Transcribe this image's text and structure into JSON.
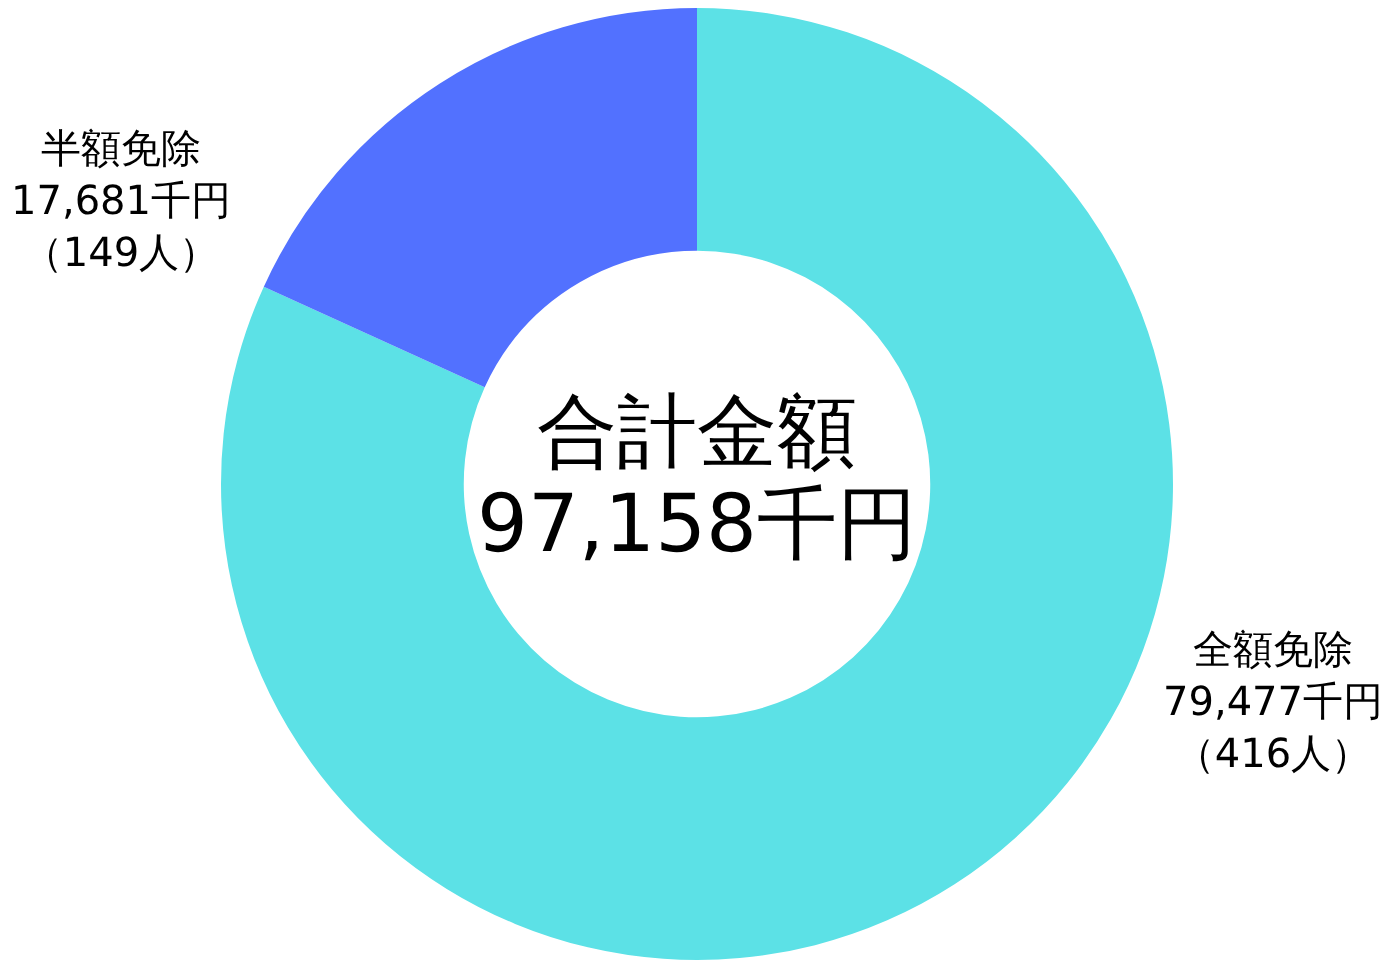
{
  "chart_data": {
    "type": "donut",
    "categories": [
      "全額免除",
      "半額免除"
    ],
    "values": [
      79477,
      17681
    ],
    "colors": [
      "#5ce1e6",
      "#5271ff"
    ],
    "value_labels": [
      "79,477千円（416人）",
      "17,681千円（149人）"
    ],
    "annotations": [
      "合計金額",
      "97,158千円"
    ],
    "legend": false
  }
}
